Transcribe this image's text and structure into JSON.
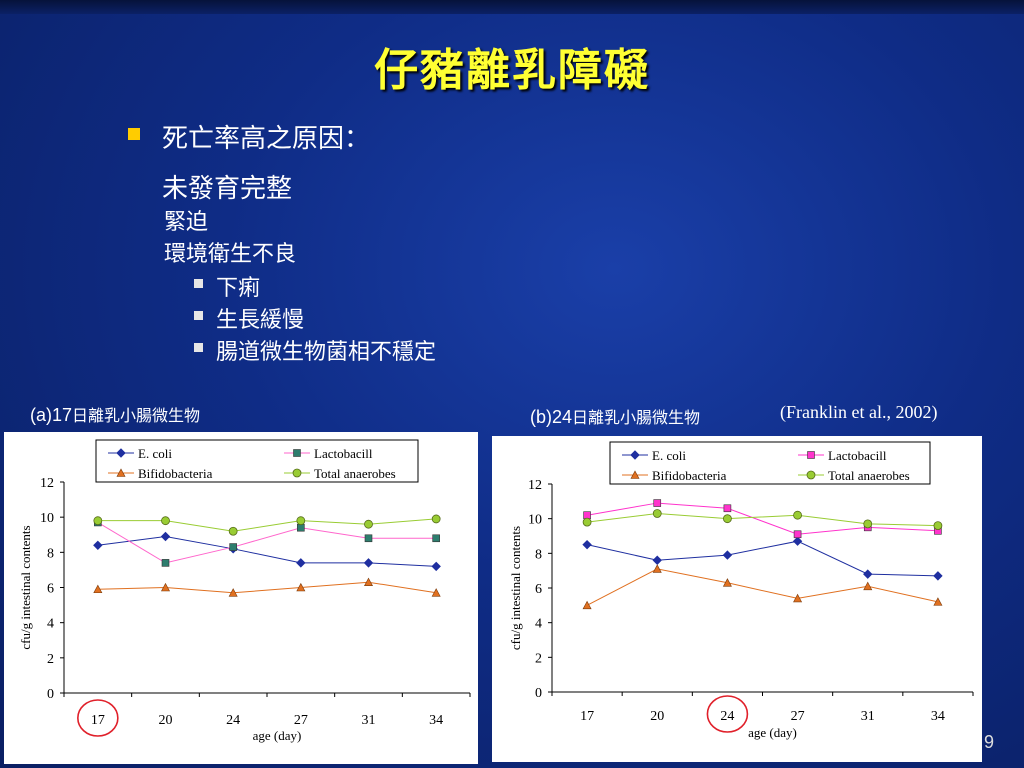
{
  "slide": {
    "title": "仔豬離乳障礙",
    "bullet_main": "死亡率高之原因：",
    "causes": [
      "未發育完整",
      "緊迫",
      "環境衛生不良"
    ],
    "sub_bullets": [
      "下痢",
      "生長緩慢",
      "腸道微生物菌相不穩定"
    ],
    "caption_a_prefix": "(a)17",
    "caption_a_text": "日離乳小腸微生物",
    "caption_b_prefix": "(b)24",
    "caption_b_text": "日離乳小腸微生物",
    "citation": "(Franklin et al., 2002)",
    "page_number": "9"
  },
  "chart_data": [
    {
      "type": "line",
      "categories": [
        "17",
        "20",
        "24",
        "27",
        "31",
        "34"
      ],
      "xlabel": "age (day)",
      "ylabel": "cfu/g intestinal contents",
      "ylim": [
        0,
        12
      ],
      "yticks": [
        "0",
        "2",
        "4",
        "6",
        "8",
        "10",
        "12"
      ],
      "legend_position": "top",
      "highlighted_category": "17",
      "series": [
        {
          "name": "E. coli",
          "color": "#1f2fa0",
          "marker": "diamond",
          "values": [
            8.4,
            8.9,
            8.2,
            7.4,
            7.4,
            7.2
          ]
        },
        {
          "name": "Lactobacill",
          "color": "#ff66cc",
          "marker_color": "#2e7d6e",
          "marker": "square",
          "values": [
            9.7,
            7.4,
            8.3,
            9.4,
            8.8,
            8.8
          ]
        },
        {
          "name": "Bifidobacteria",
          "color": "#e07020",
          "marker": "triangle",
          "values": [
            5.9,
            6.0,
            5.7,
            6.0,
            6.3,
            5.7
          ]
        },
        {
          "name": "Total anaerobes",
          "color": "#99cc33",
          "marker": "circle",
          "values": [
            9.8,
            9.8,
            9.2,
            9.8,
            9.6,
            9.9
          ]
        }
      ]
    },
    {
      "type": "line",
      "categories": [
        "17",
        "20",
        "24",
        "27",
        "31",
        "34"
      ],
      "xlabel": "age (day)",
      "ylabel": "cfu/g intestinal contents",
      "ylim": [
        0,
        12
      ],
      "yticks": [
        "0",
        "2",
        "4",
        "6",
        "8",
        "10",
        "12"
      ],
      "legend_position": "top",
      "highlighted_category": "24",
      "series": [
        {
          "name": "E. coli",
          "color": "#1f2fa0",
          "marker": "diamond",
          "values": [
            8.5,
            7.6,
            7.9,
            8.7,
            6.8,
            6.7
          ]
        },
        {
          "name": "Lactobacill",
          "color": "#ff33cc",
          "marker": "square",
          "values": [
            10.2,
            10.9,
            10.6,
            9.1,
            9.5,
            9.3
          ]
        },
        {
          "name": "Bifidobacteria",
          "color": "#e07020",
          "marker": "triangle",
          "values": [
            5.0,
            7.1,
            6.3,
            5.4,
            6.1,
            5.2
          ]
        },
        {
          "name": "Total anaerobes",
          "color": "#99cc33",
          "marker": "circle",
          "values": [
            9.8,
            10.3,
            10.0,
            10.2,
            9.7,
            9.6
          ]
        }
      ]
    }
  ]
}
